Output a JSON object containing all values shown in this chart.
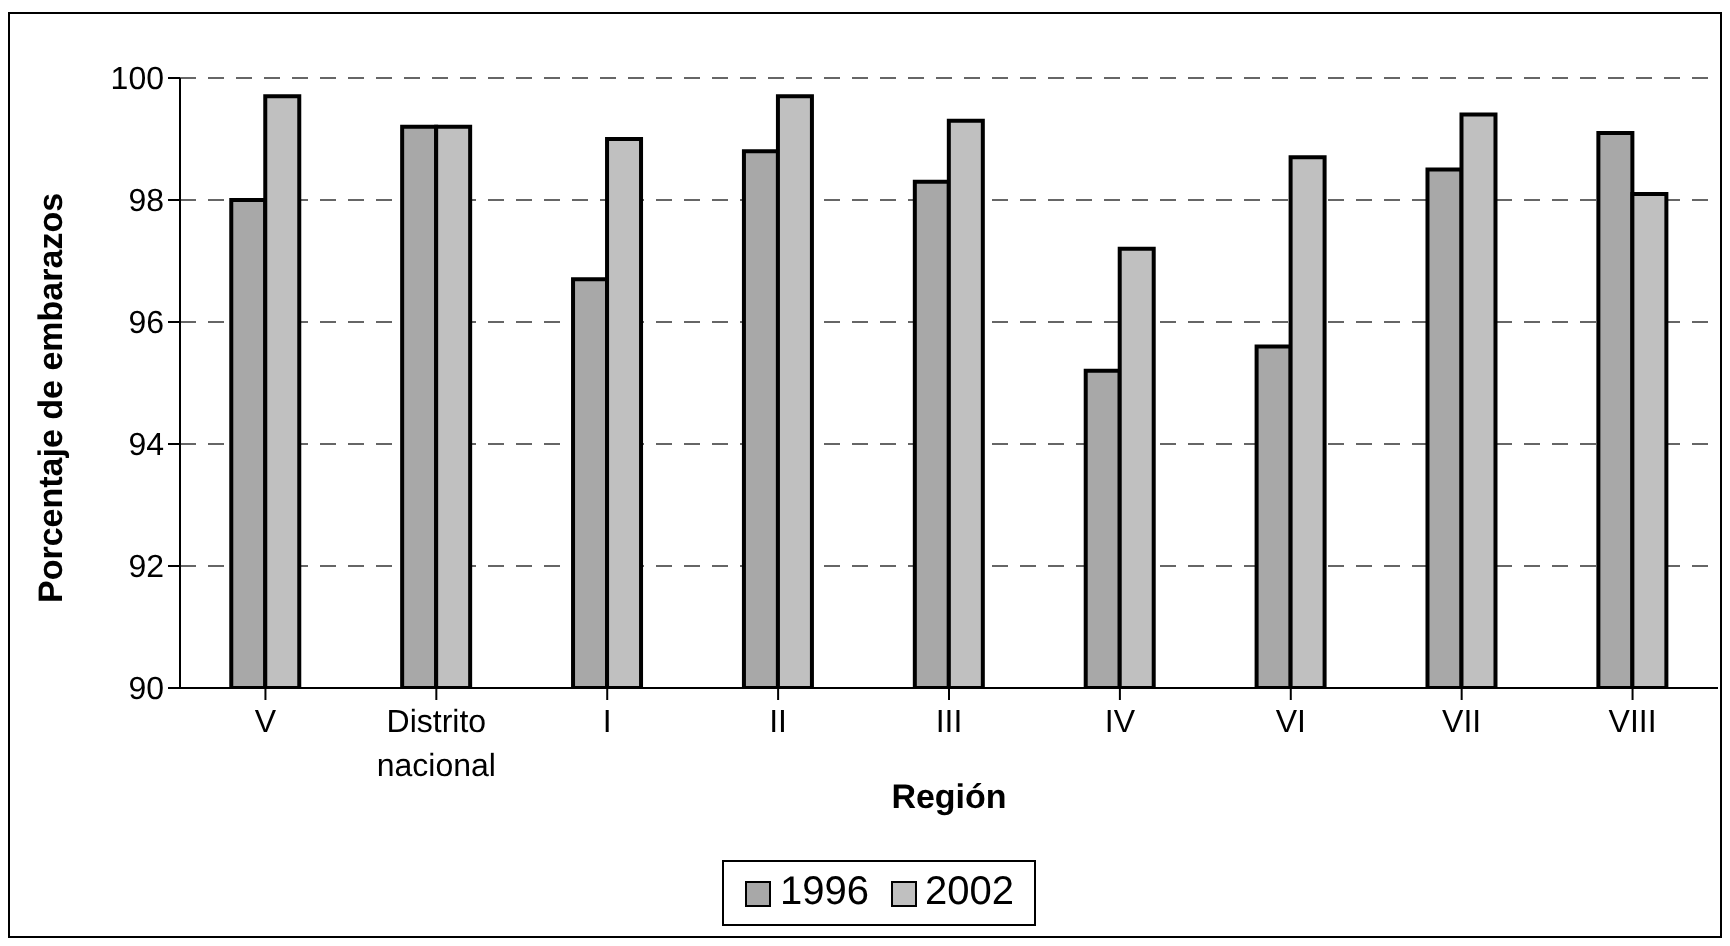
{
  "chart_data": {
    "type": "bar",
    "xlabel": "Región",
    "ylabel": "Porcentaje de embarazos",
    "categories": [
      "V",
      "Distrito nacional",
      "I",
      "II",
      "III",
      "IV",
      "VI",
      "VII",
      "VIII"
    ],
    "series": [
      {
        "name": "1996",
        "color": "#a8a8a8",
        "values": [
          98.0,
          99.2,
          96.7,
          98.8,
          98.3,
          95.2,
          95.6,
          98.5,
          99.1
        ]
      },
      {
        "name": "2002",
        "color": "#c0c0c0",
        "values": [
          99.7,
          99.2,
          99.0,
          99.7,
          99.3,
          97.2,
          98.7,
          99.4,
          98.1
        ]
      }
    ],
    "ylim": [
      90,
      100
    ],
    "yticks": [
      90,
      92,
      94,
      96,
      98,
      100
    ],
    "grid": "y",
    "legend": "bottom"
  }
}
